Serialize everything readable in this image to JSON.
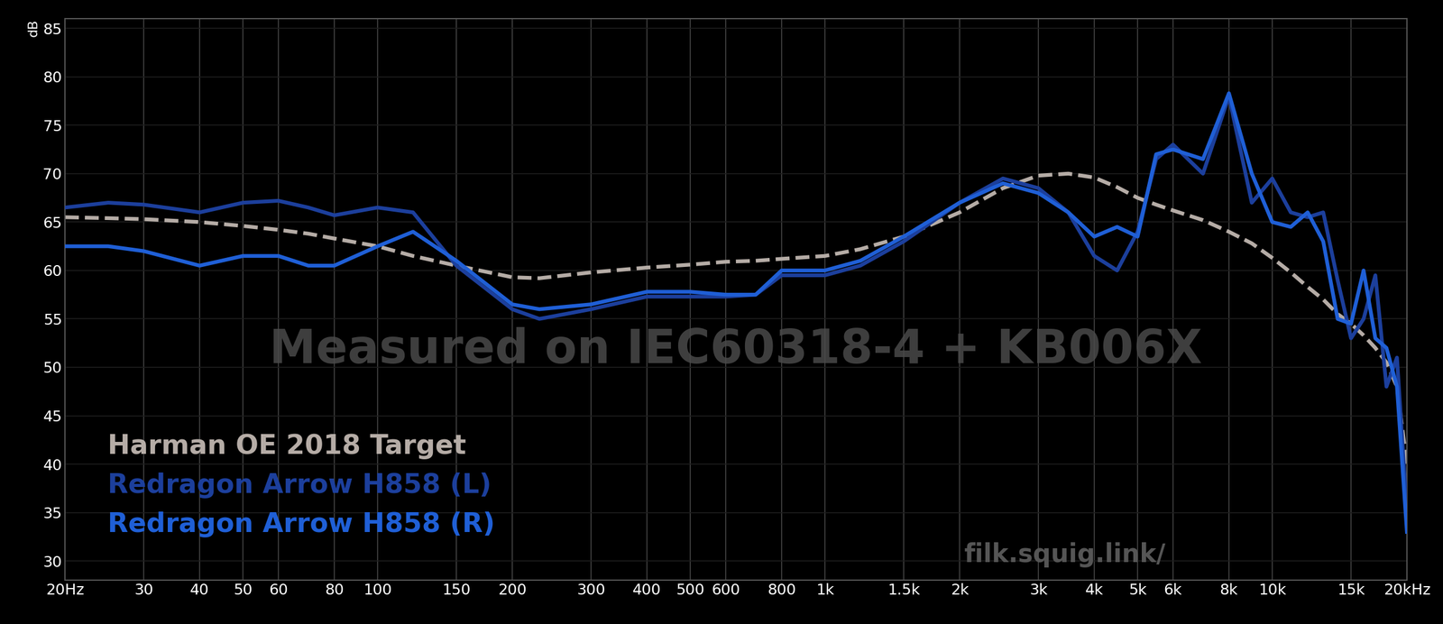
{
  "chart_data": {
    "type": "line",
    "y_label": "dB",
    "annotations": [
      "Measured on IEC60318-4 + KB006X",
      "filk.squig.link/"
    ],
    "x": [
      20,
      25,
      30,
      40,
      50,
      60,
      70,
      80,
      100,
      120,
      150,
      200,
      230,
      300,
      400,
      500,
      600,
      700,
      800,
      1000,
      1200,
      1500,
      2000,
      2500,
      3000,
      3500,
      4000,
      4500,
      5000,
      5500,
      6000,
      7000,
      8000,
      9000,
      10000,
      11000,
      12000,
      13000,
      14000,
      15000,
      16000,
      17000,
      18000,
      19000,
      20000
    ],
    "series": [
      {
        "name": "Harman OE 2018 Target",
        "color": "#b5aca6",
        "line_style": "dashed",
        "values": [
          65.5,
          65.4,
          65.3,
          65.0,
          64.6,
          64.2,
          63.8,
          63.3,
          62.5,
          61.5,
          60.5,
          59.3,
          59.2,
          59.8,
          60.3,
          60.6,
          60.9,
          61.0,
          61.2,
          61.5,
          62.2,
          63.5,
          66.0,
          68.5,
          69.8,
          70.0,
          69.6,
          68.6,
          67.5,
          66.8,
          66.2,
          65.2,
          64.0,
          62.8,
          61.3,
          59.8,
          58.3,
          57.0,
          55.5,
          54.5,
          53.3,
          52.0,
          50.5,
          48.0,
          40.0
        ]
      },
      {
        "name": "Redragon Arrow H858 (L)",
        "color": "#1c3f9c",
        "line_style": "solid",
        "values": [
          66.5,
          67.0,
          66.8,
          66.0,
          67.0,
          67.2,
          66.5,
          65.7,
          66.5,
          66.0,
          60.5,
          56.0,
          55.0,
          56.0,
          57.3,
          57.3,
          57.3,
          57.5,
          59.5,
          59.5,
          60.5,
          63.0,
          67.0,
          69.5,
          68.5,
          66.0,
          61.5,
          60.0,
          64.0,
          71.5,
          73.0,
          70.0,
          78.0,
          67.0,
          69.5,
          66.0,
          65.5,
          66.0,
          59.0,
          53.0,
          55.0,
          59.5,
          48.0,
          51.0,
          35.0
        ]
      },
      {
        "name": "Redragon Arrow H858 (R)",
        "color": "#1f5fd6",
        "line_style": "solid",
        "values": [
          62.5,
          62.5,
          62.0,
          60.5,
          61.5,
          61.5,
          60.5,
          60.5,
          62.5,
          64.0,
          61.0,
          56.5,
          56.0,
          56.5,
          57.8,
          57.8,
          57.5,
          57.5,
          60.0,
          60.0,
          61.0,
          63.5,
          67.0,
          69.0,
          68.0,
          66.0,
          63.5,
          64.5,
          63.5,
          72.0,
          72.5,
          71.5,
          78.3,
          70.0,
          65.0,
          64.5,
          66.0,
          63.0,
          55.0,
          54.5,
          60.0,
          53.0,
          52.0,
          48.0,
          33.0
        ]
      }
    ],
    "log": "x",
    "xlim": [
      20,
      20000
    ],
    "ylim": [
      28,
      86
    ],
    "xticks": [
      {
        "value": 20,
        "label": "20Hz"
      },
      30,
      40,
      50,
      60,
      80,
      100,
      150,
      200,
      300,
      400,
      500,
      600,
      800,
      {
        "value": 1000,
        "label": "1k"
      },
      {
        "value": 1500,
        "label": "1.5k"
      },
      {
        "value": 2000,
        "label": "2k"
      },
      {
        "value": 3000,
        "label": "3k"
      },
      {
        "value": 4000,
        "label": "4k"
      },
      {
        "value": 5000,
        "label": "5k"
      },
      {
        "value": 6000,
        "label": "6k"
      },
      {
        "value": 8000,
        "label": "8k"
      },
      {
        "value": 10000,
        "label": "10k"
      },
      {
        "value": 15000,
        "label": "15k"
      },
      {
        "value": 20000,
        "label": "20kHz"
      }
    ],
    "yticks": [
      30,
      35,
      40,
      45,
      50,
      55,
      60,
      65,
      70,
      75,
      80,
      85
    ],
    "grid": true,
    "legend": "lower left"
  }
}
